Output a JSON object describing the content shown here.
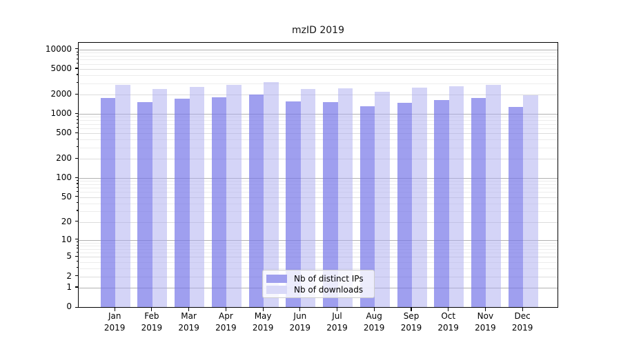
{
  "chart_data": {
    "type": "bar",
    "title": "mzID 2019",
    "categories": [
      "Jan",
      "Feb",
      "Mar",
      "Apr",
      "May",
      "Jun",
      "Jul",
      "Aug",
      "Sep",
      "Oct",
      "Nov",
      "Dec"
    ],
    "category_year": "2019",
    "series": [
      {
        "name": "Nb of distinct IPs",
        "swatch_color": "#9f9fee",
        "bar_color": "rgba(118,118,232,0.70)",
        "values": [
          1700,
          1450,
          1650,
          1730,
          1900,
          1500,
          1450,
          1260,
          1420,
          1570,
          1690,
          1220
        ]
      },
      {
        "name": "Nb of downloads",
        "swatch_color": "#d9d9f8",
        "bar_color": "rgba(173,173,240,0.52)",
        "values": [
          2700,
          2330,
          2520,
          2700,
          2990,
          2330,
          2390,
          2110,
          2450,
          2570,
          2700,
          1880
        ]
      }
    ],
    "yscale": "log1p",
    "ylabel": "",
    "xlabel": "",
    "y_ticks": [
      10000,
      5000,
      2000,
      1000,
      500,
      200,
      100,
      50,
      20,
      10,
      5,
      2,
      1,
      0
    ],
    "ylim": [
      0,
      12800
    ],
    "grid": "horizontal",
    "legend_position": "lower-center",
    "grid_major_color": "#b0b0b0",
    "grid_minor_color": "#ececec"
  }
}
